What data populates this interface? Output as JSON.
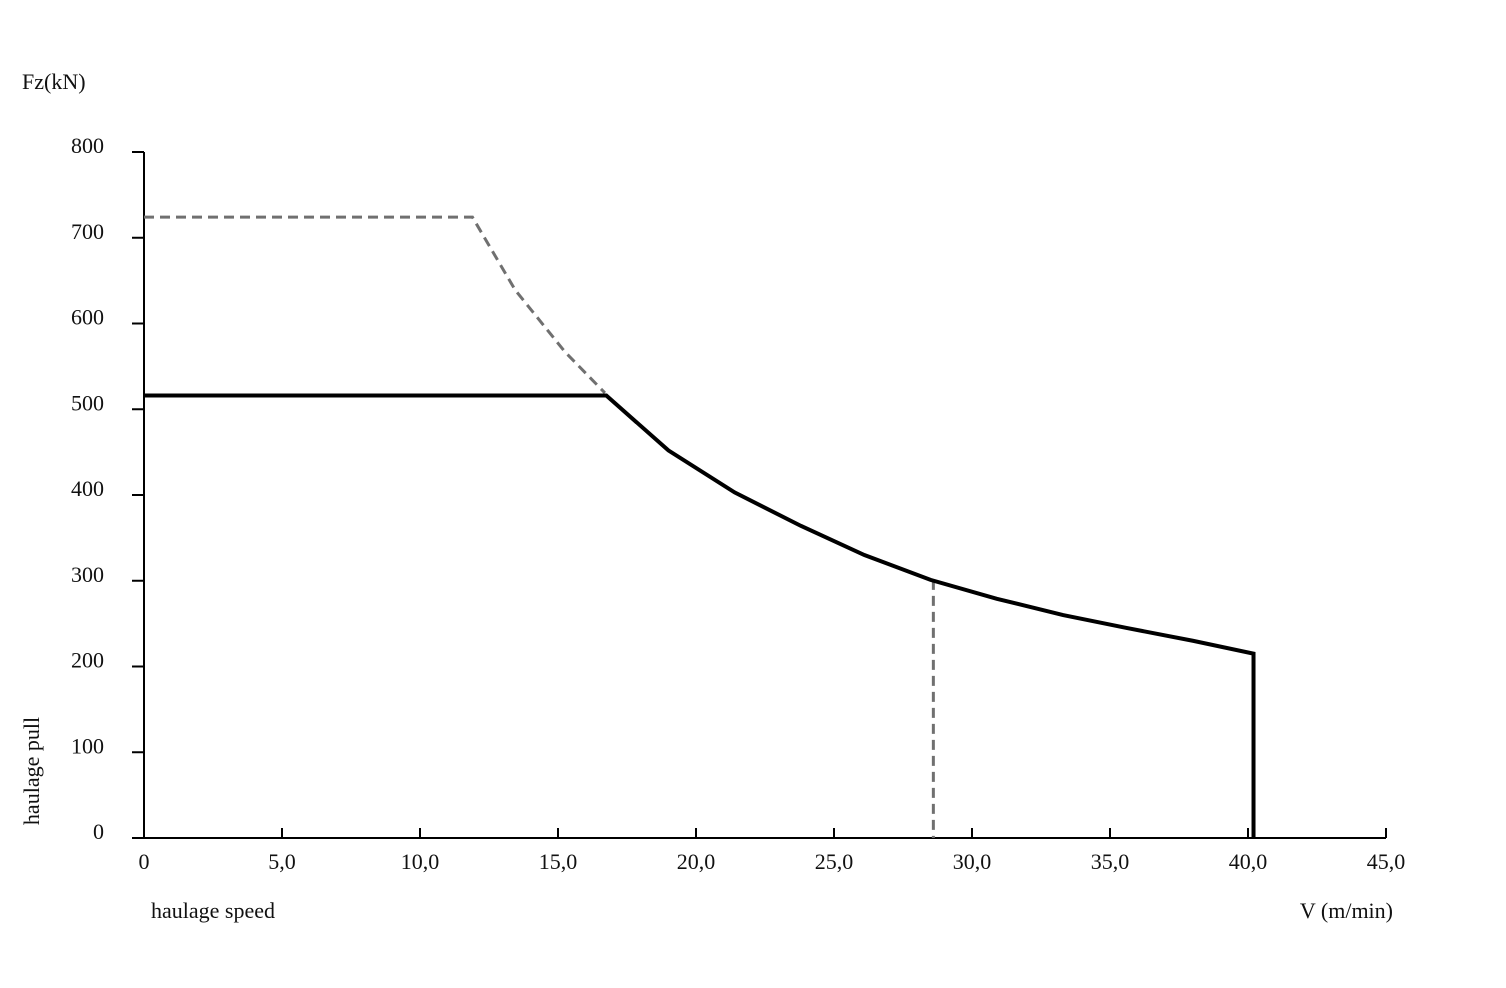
{
  "chart_data": {
    "type": "line",
    "y_unit_label": "Fz(kN)",
    "ylabel": "haulage pull",
    "xlabel": "haulage speed",
    "x_unit_label": "V (m/min)",
    "xlim": [
      0,
      45
    ],
    "ylim": [
      0,
      800
    ],
    "xticks": [
      0,
      {
        "value": 5,
        "label": "5,0"
      },
      {
        "value": 10,
        "label": "10,0"
      },
      {
        "value": 15,
        "label": "15,0"
      },
      {
        "value": 20,
        "label": "20,0"
      },
      {
        "value": 25,
        "label": "25,0"
      },
      {
        "value": 30,
        "label": "30,0"
      },
      {
        "value": 35,
        "label": "35,0"
      },
      {
        "value": 40,
        "label": "40,0"
      },
      {
        "value": 45,
        "label": "45,0"
      }
    ],
    "yticks": [
      0,
      100,
      200,
      300,
      400,
      500,
      600,
      700,
      800
    ],
    "grid": false,
    "series": [
      {
        "color": "#000000",
        "dashed": false,
        "x": [
          0,
          16.75,
          19.0,
          21.4,
          23.8,
          26.1,
          28.5,
          30.9,
          33.3,
          35.6,
          38.0,
          40.2,
          40.2
        ],
        "values": [
          516,
          516,
          452,
          403,
          364,
          330,
          301,
          279,
          260,
          245,
          230,
          215,
          0
        ]
      },
      {
        "color": "#707070",
        "dashed": true,
        "x": [
          0,
          11.9,
          13.45,
          15.25,
          16.7,
          null,
          28.6,
          28.6
        ],
        "values": [
          724,
          724,
          639,
          567,
          519,
          null,
          301,
          0
        ]
      }
    ]
  }
}
